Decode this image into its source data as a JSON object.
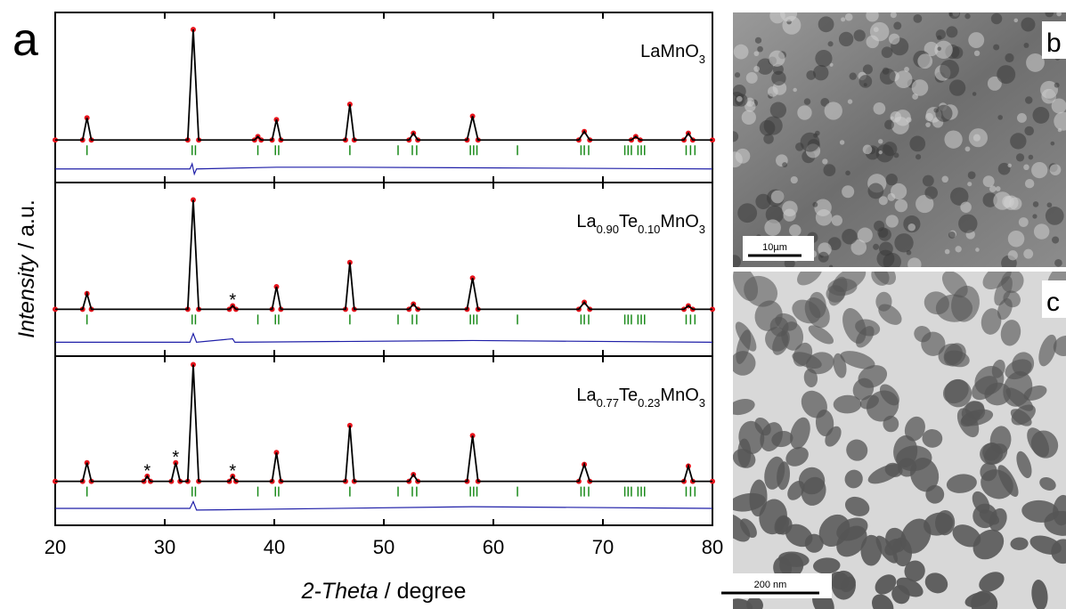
{
  "chart_data": {
    "type": "xrd",
    "panel_label": "a",
    "xlim": [
      20,
      80
    ],
    "xticks": [
      20,
      30,
      40,
      50,
      60,
      70,
      80
    ],
    "xlabel": [
      "2-Theta",
      " / degree"
    ],
    "ylabel": [
      "Intensity",
      " / a.u."
    ],
    "colors": {
      "observed": "#e8141c",
      "calculated": "#000000",
      "difference": "#1f1fa8",
      "bragg": "#1a8a1a"
    },
    "bragg": [
      22.9,
      32.5,
      32.8,
      38.5,
      40.1,
      40.4,
      46.9,
      51.3,
      52.6,
      53.0,
      57.9,
      58.2,
      58.5,
      62.2,
      68.0,
      68.3,
      68.7,
      72.0,
      72.3,
      72.6,
      73.2,
      73.5,
      73.8,
      77.6,
      78.0,
      78.4
    ],
    "panels": [
      {
        "formula": [
          "LaMnO",
          "3"
        ],
        "ylim": [
          0,
          100
        ],
        "x": [
          20,
          22.5,
          22.9,
          23.3,
          32.1,
          32.6,
          33.1,
          38.2,
          38.5,
          38.8,
          39.8,
          40.2,
          40.6,
          46.5,
          46.9,
          47.3,
          52.3,
          52.7,
          53.1,
          57.6,
          58.1,
          58.6,
          67.8,
          68.3,
          68.8,
          72.6,
          73,
          73.4,
          77.4,
          77.8,
          78.2,
          80
        ],
        "values": [
          25,
          25,
          38,
          25,
          25,
          90,
          25,
          25,
          27,
          25,
          25,
          37,
          25,
          25,
          46,
          25,
          25,
          29,
          25,
          25,
          39,
          25,
          25,
          30,
          25,
          25,
          27,
          25,
          25,
          29,
          25,
          25
        ],
        "difference": {
          "x": [
            20,
            32.3,
            32.5,
            32.7,
            32.9,
            40.2,
            46.9,
            80
          ],
          "values": [
            8,
            8,
            11,
            5,
            8,
            9,
            9,
            8
          ]
        },
        "annotations": []
      },
      {
        "formula": [
          "La",
          "0.90",
          "Te",
          "0.10",
          "MnO",
          "3"
        ],
        "ylim": [
          0,
          100
        ],
        "x": [
          20,
          22.5,
          22.9,
          23.3,
          32.1,
          32.6,
          33.1,
          35.9,
          36.2,
          36.5,
          39.8,
          40.2,
          40.6,
          46.5,
          46.9,
          47.3,
          52.3,
          52.7,
          53.1,
          57.6,
          58.1,
          58.6,
          67.8,
          68.3,
          68.8,
          77.4,
          77.8,
          78.2,
          80
        ],
        "values": [
          27,
          27,
          36,
          27,
          27,
          90,
          27,
          27,
          29,
          27,
          27,
          40,
          27,
          27,
          54,
          27,
          27,
          30,
          27,
          27,
          45,
          27,
          27,
          31,
          27,
          27,
          29,
          27,
          27
        ],
        "difference": {
          "x": [
            20,
            32.3,
            32.6,
            32.9,
            36.2,
            36.4,
            58.1,
            80
          ],
          "values": [
            8,
            8,
            13,
            8,
            10,
            8,
            9,
            8
          ]
        },
        "annotations": [
          {
            "text": "*",
            "x": 36.2,
            "y": 33
          }
        ]
      },
      {
        "formula": [
          "La",
          "0.77",
          "Te",
          "0.23",
          "MnO",
          "3"
        ],
        "ylim": [
          0,
          100
        ],
        "x": [
          20,
          22.5,
          22.9,
          23.3,
          28.1,
          28.4,
          28.7,
          30.6,
          31,
          31.4,
          32.1,
          32.6,
          33.1,
          35.9,
          36.2,
          36.5,
          39.8,
          40.2,
          40.6,
          46.5,
          46.9,
          47.3,
          52.3,
          52.7,
          53.1,
          57.6,
          58.1,
          58.6,
          67.8,
          68.3,
          68.8,
          77.4,
          77.8,
          78.2,
          80
        ],
        "values": [
          26,
          26,
          37,
          26,
          26,
          29,
          26,
          26,
          37,
          26,
          26,
          95,
          26,
          26,
          29,
          26,
          26,
          43,
          26,
          26,
          59,
          26,
          26,
          30,
          26,
          26,
          53,
          26,
          26,
          36,
          26,
          26,
          35,
          26,
          26
        ],
        "difference": {
          "x": [
            20,
            32.3,
            32.6,
            32.9,
            58.1,
            80
          ],
          "values": [
            10,
            10,
            14,
            9,
            11,
            10
          ]
        },
        "annotations": [
          {
            "text": "*",
            "x": 28.4,
            "y": 33
          },
          {
            "text": "*",
            "x": 31,
            "y": 41
          },
          {
            "text": "*",
            "x": 36.2,
            "y": 33
          }
        ]
      }
    ]
  },
  "images": [
    {
      "label": "b",
      "scale_bar": "10µm"
    },
    {
      "label": "c",
      "scale_bar": "200 nm"
    }
  ]
}
